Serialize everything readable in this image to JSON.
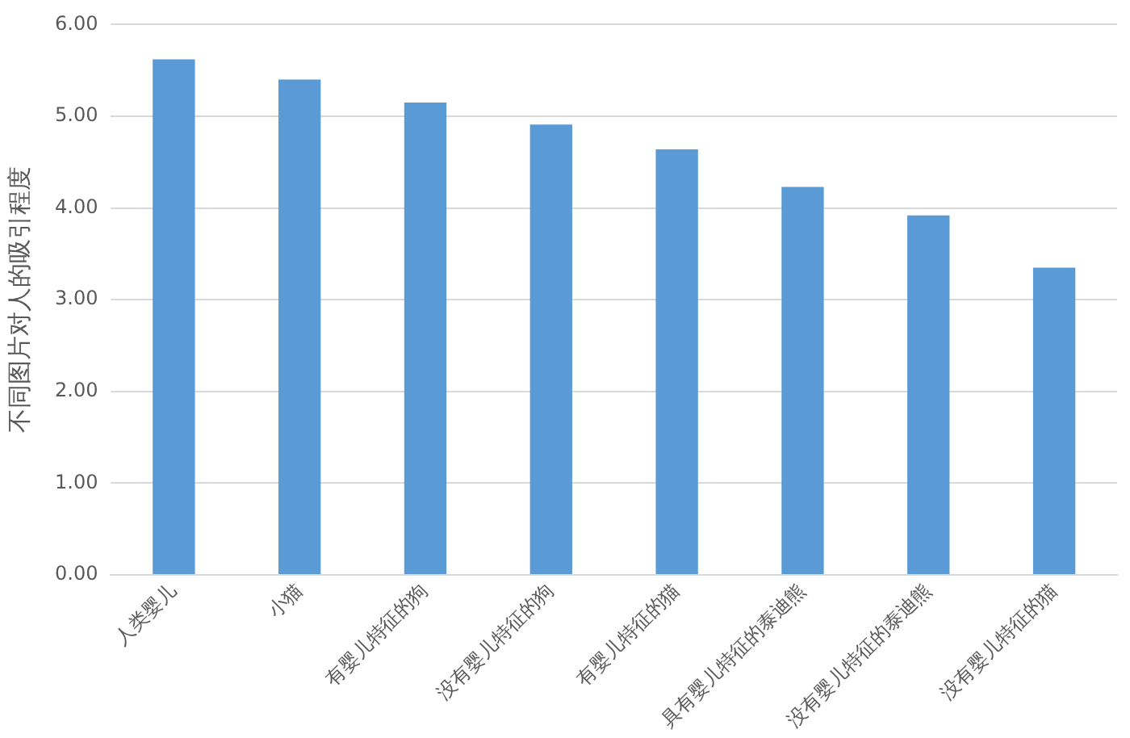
{
  "chart_data": {
    "type": "bar",
    "ylabel": "不同图片对人的吸引程度",
    "categories": [
      "人类婴儿",
      "小猫",
      "有婴儿特征的狗",
      "没有婴儿特征的狗",
      "有婴儿特征的猫",
      "具有婴儿特征的泰迪熊",
      "没有婴儿特征的泰迪熊",
      "没有婴儿特征的猫"
    ],
    "values": [
      5.62,
      5.4,
      5.15,
      4.91,
      4.64,
      4.23,
      3.92,
      3.35
    ],
    "color": "#5b9bd5",
    "ylim": [
      0,
      6
    ],
    "yticks": [
      {
        "value": 0,
        "label": "0.00"
      },
      {
        "value": 1,
        "label": "1.00"
      },
      {
        "value": 2,
        "label": "2.00"
      },
      {
        "value": 3,
        "label": "3.00"
      },
      {
        "value": 4,
        "label": "4.00"
      },
      {
        "value": 5,
        "label": "5.00"
      },
      {
        "value": 6,
        "label": "6.00"
      }
    ],
    "grid": "y"
  }
}
